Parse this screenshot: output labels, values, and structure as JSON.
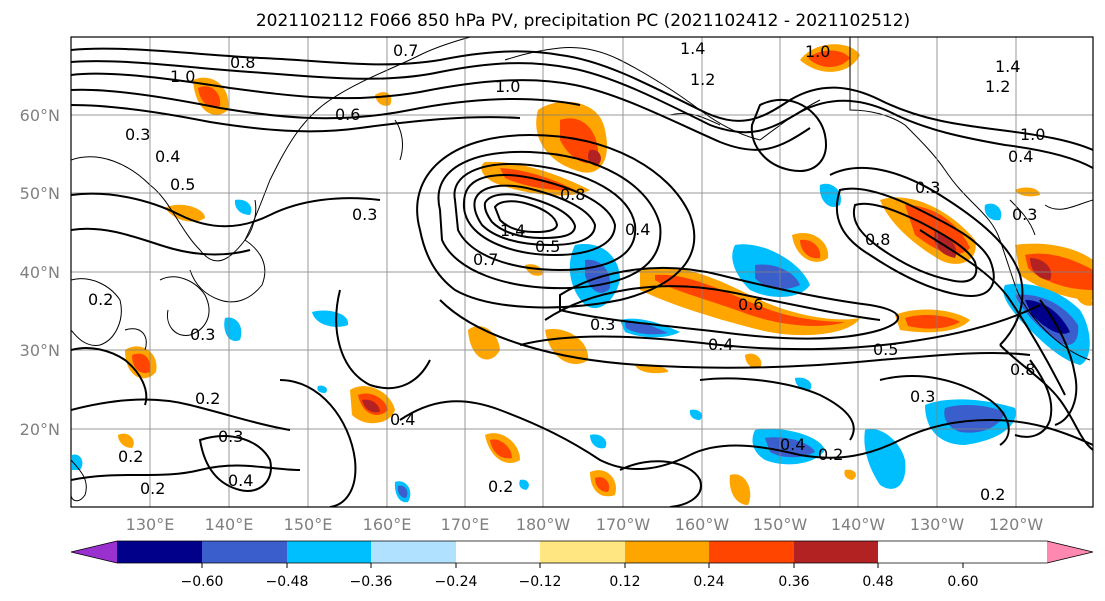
{
  "title": "2021102112 F066 850 hPa PV, precipitation PC (2021102412 - 2021102512)",
  "lat_labels": [
    "60°N",
    "50°N",
    "40°N",
    "30°N",
    "20°N"
  ],
  "lon_labels": [
    "130°E",
    "140°E",
    "150°E",
    "160°E",
    "170°E",
    "180°W",
    "170°W",
    "160°W",
    "150°W",
    "140°W",
    "130°W",
    "120°W"
  ],
  "colorbar": {
    "ticks": [
      "−0.60",
      "−0.48",
      "−0.36",
      "−0.24",
      "−0.12",
      "0.12",
      "0.24",
      "0.36",
      "0.48",
      "0.60"
    ],
    "colors": [
      "#9b30d0",
      "#00008b",
      "#3a5fcd",
      "#00bfff",
      "#b0e2ff",
      "#ffffff",
      "#ffe680",
      "#ffa500",
      "#ff4500",
      "#b22222",
      "#ff88b0"
    ]
  },
  "contour_labels": [
    "0.7",
    "1.4",
    "1.0",
    "1.0",
    "0.8",
    "1.2",
    "1.4",
    "1.2",
    "1.0",
    "0.6",
    "0.3",
    "0.4",
    "0.5",
    "0.3",
    "1.0",
    "0.8",
    "0.7",
    "1.4",
    "0.5",
    "0.4",
    "0.3",
    "0.6",
    "0.8",
    "0.3",
    "0.4",
    "0.3",
    "0.2",
    "0.3",
    "0.4",
    "0.5",
    "0.4",
    "0.2",
    "0.3",
    "0.2",
    "0.4",
    "0.2",
    "0.2",
    "0.4",
    "0.2",
    "0.8",
    "0.3",
    "0.2"
  ],
  "colors": {
    "contour": "#000000",
    "grid": "#808080",
    "coast": "#000000"
  }
}
